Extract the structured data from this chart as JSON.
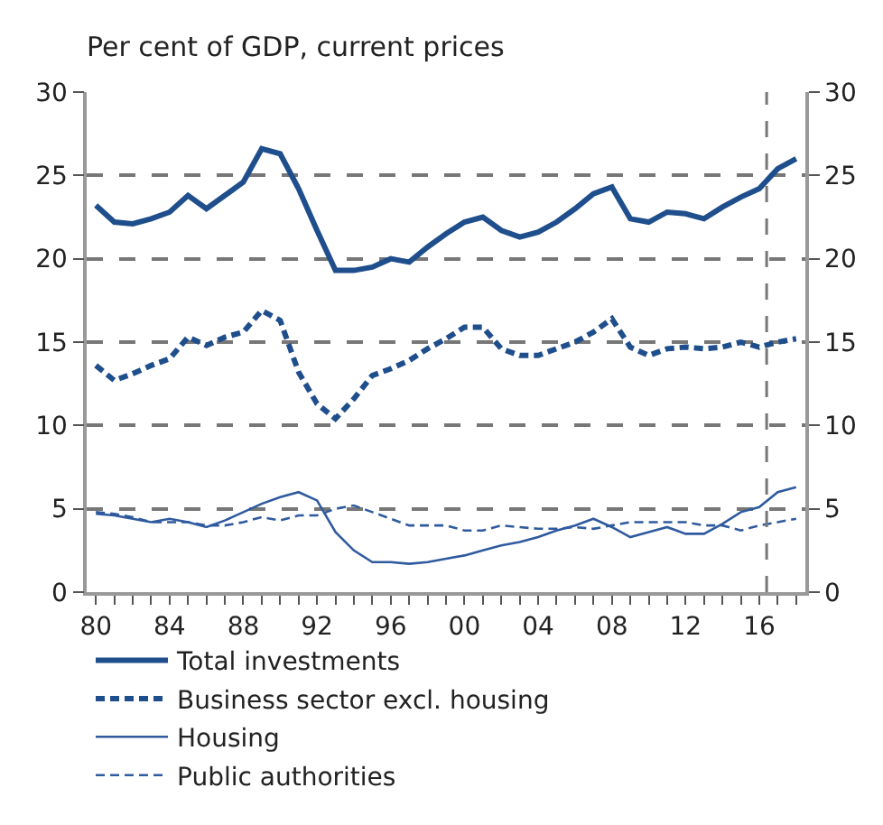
{
  "chart_data": {
    "type": "line",
    "title": "Per cent of GDP, current prices",
    "x": [
      1980,
      1981,
      1982,
      1983,
      1984,
      1985,
      1986,
      1987,
      1988,
      1989,
      1990,
      1991,
      1992,
      1993,
      1994,
      1995,
      1996,
      1997,
      1998,
      1999,
      2000,
      2001,
      2002,
      2003,
      2004,
      2005,
      2006,
      2007,
      2008,
      2009,
      2010,
      2011,
      2012,
      2013,
      2014,
      2015,
      2016,
      2017,
      2018
    ],
    "series": [
      {
        "name": "Total investments",
        "color": "#1f4e8c",
        "line_style": "solid",
        "values": [
          23.2,
          22.2,
          22.1,
          22.4,
          22.8,
          23.8,
          23.0,
          23.8,
          24.6,
          26.6,
          26.3,
          24.2,
          21.7,
          19.3,
          19.3,
          19.5,
          20.0,
          19.8,
          20.7,
          21.5,
          22.2,
          22.5,
          21.7,
          21.3,
          21.6,
          22.2,
          23.0,
          23.9,
          24.3,
          22.4,
          22.2,
          22.8,
          22.7,
          22.4,
          23.1,
          23.7,
          24.2,
          25.4,
          26.0
        ]
      },
      {
        "name": "Business sector excl. housing",
        "color": "#1f4e8c",
        "line_style": "dashed",
        "values": [
          13.6,
          12.7,
          13.1,
          13.6,
          14.0,
          15.3,
          14.8,
          15.3,
          15.6,
          16.9,
          16.3,
          13.2,
          11.3,
          10.4,
          11.6,
          13.0,
          13.4,
          13.9,
          14.6,
          15.2,
          15.9,
          15.9,
          14.6,
          14.2,
          14.2,
          14.6,
          15.0,
          15.6,
          16.4,
          14.7,
          14.2,
          14.6,
          14.7,
          14.6,
          14.7,
          15.0,
          14.7,
          15.0,
          15.2
        ]
      },
      {
        "name": "Housing",
        "color": "#2f5a9e",
        "line_style": "solid",
        "values": [
          4.7,
          4.6,
          4.4,
          4.2,
          4.4,
          4.2,
          3.9,
          4.3,
          4.8,
          5.3,
          5.7,
          6.0,
          5.5,
          3.6,
          2.5,
          1.8,
          1.8,
          1.7,
          1.8,
          2.0,
          2.2,
          2.5,
          2.8,
          3.0,
          3.3,
          3.7,
          4.0,
          4.4,
          3.9,
          3.3,
          3.6,
          3.9,
          3.5,
          3.5,
          4.1,
          4.8,
          5.1,
          6.0,
          6.3
        ]
      },
      {
        "name": "Public authorities",
        "color": "#2f5a9e",
        "line_style": "dashed",
        "values": [
          4.8,
          4.7,
          4.5,
          4.2,
          4.2,
          4.2,
          4.0,
          4.0,
          4.2,
          4.5,
          4.3,
          4.6,
          4.6,
          5.0,
          5.2,
          4.8,
          4.4,
          4.0,
          4.0,
          4.0,
          3.7,
          3.7,
          4.0,
          3.9,
          3.8,
          3.8,
          3.9,
          3.8,
          4.0,
          4.2,
          4.2,
          4.2,
          4.2,
          4.0,
          4.0,
          3.7,
          4.0,
          4.2,
          4.4
        ]
      }
    ],
    "xlim": [
      1979.5,
      2018.5
    ],
    "xticks": [
      {
        "value": 1980,
        "label": "80"
      },
      {
        "value": 1981,
        "label": null
      },
      {
        "value": 1982,
        "label": null
      },
      {
        "value": 1983,
        "label": null
      },
      {
        "value": 1984,
        "label": "84"
      },
      {
        "value": 1985,
        "label": null
      },
      {
        "value": 1986,
        "label": null
      },
      {
        "value": 1987,
        "label": null
      },
      {
        "value": 1988,
        "label": "88"
      },
      {
        "value": 1989,
        "label": null
      },
      {
        "value": 1990,
        "label": null
      },
      {
        "value": 1991,
        "label": null
      },
      {
        "value": 1992,
        "label": "92"
      },
      {
        "value": 1993,
        "label": null
      },
      {
        "value": 1994,
        "label": null
      },
      {
        "value": 1995,
        "label": null
      },
      {
        "value": 1996,
        "label": "96"
      },
      {
        "value": 1997,
        "label": null
      },
      {
        "value": 1998,
        "label": null
      },
      {
        "value": 1999,
        "label": null
      },
      {
        "value": 2000,
        "label": "00"
      },
      {
        "value": 2001,
        "label": null
      },
      {
        "value": 2002,
        "label": null
      },
      {
        "value": 2003,
        "label": null
      },
      {
        "value": 2004,
        "label": "04"
      },
      {
        "value": 2005,
        "label": null
      },
      {
        "value": 2006,
        "label": null
      },
      {
        "value": 2007,
        "label": null
      },
      {
        "value": 2008,
        "label": "08"
      },
      {
        "value": 2009,
        "label": null
      },
      {
        "value": 2010,
        "label": null
      },
      {
        "value": 2011,
        "label": null
      },
      {
        "value": 2012,
        "label": "12"
      },
      {
        "value": 2013,
        "label": null
      },
      {
        "value": 2014,
        "label": null
      },
      {
        "value": 2015,
        "label": null
      },
      {
        "value": 2016,
        "label": "16"
      },
      {
        "value": 2017,
        "label": null
      },
      {
        "value": 2018,
        "label": null
      }
    ],
    "ylim": [
      0,
      30
    ],
    "yticks": [
      0,
      5,
      10,
      15,
      20,
      25,
      30
    ],
    "y2lim": [
      0,
      30
    ],
    "y2ticks": [
      0,
      5,
      10,
      15,
      20,
      25,
      30
    ],
    "grid": "y",
    "legend": "bottom",
    "marker": "none",
    "ref_lines": [
      {
        "axis": "x",
        "value": 2016.4,
        "color": "#777777",
        "line_style": "dashed"
      }
    ]
  }
}
